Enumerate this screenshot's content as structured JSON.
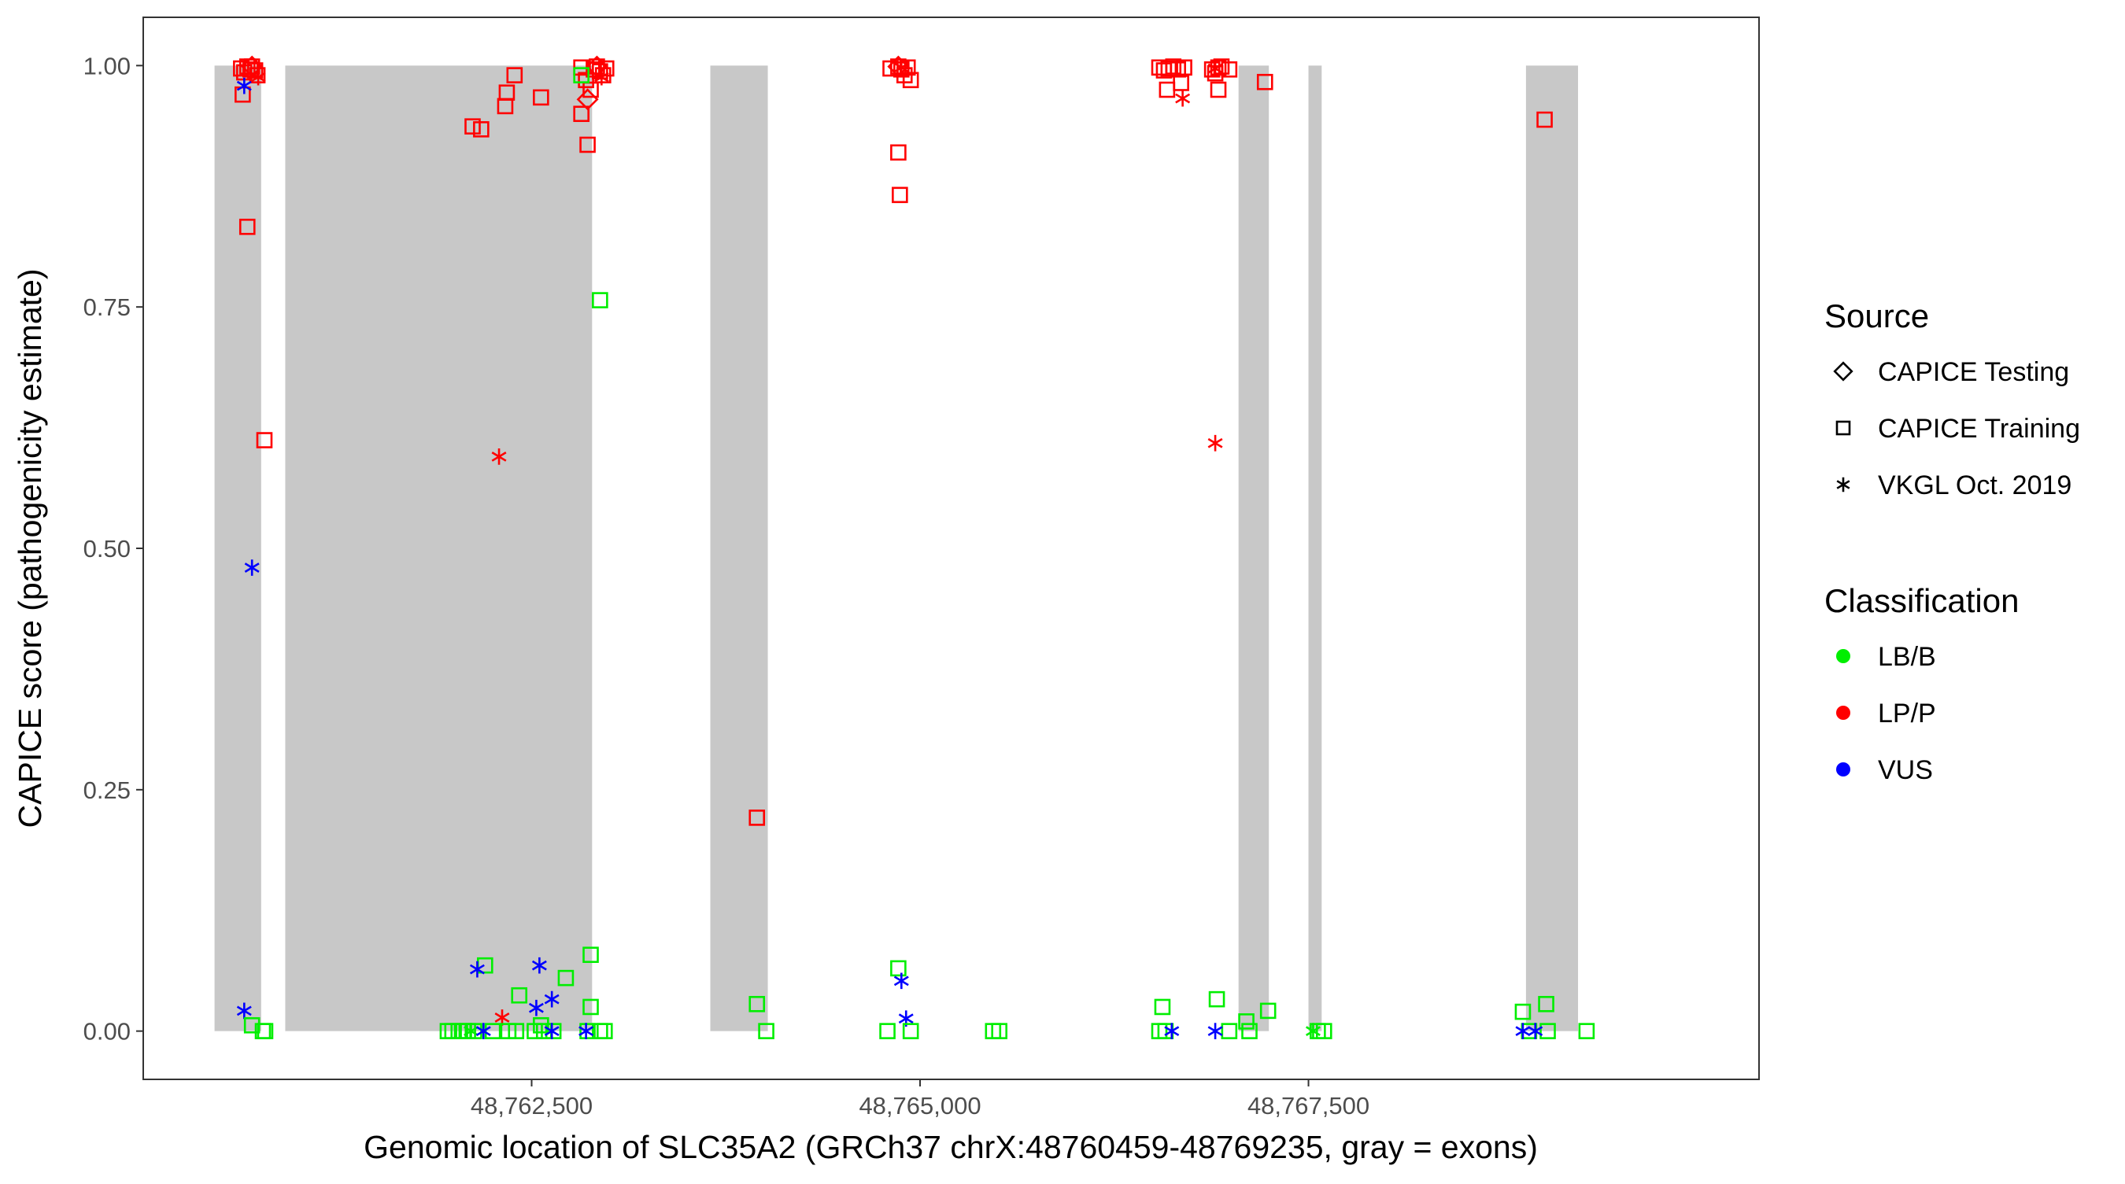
{
  "chart_data": {
    "type": "scatter",
    "title": "",
    "xlabel": "Genomic location of SLC35A2 (GRCh37 chrX:48760459-48769235, gray = exons)",
    "ylabel": "CAPICE score (pathogenicity estimate)",
    "xlim": [
      48760000,
      48770400
    ],
    "ylim": [
      -0.05,
      1.05
    ],
    "x_ticks": [
      48762500,
      48765000,
      48767500
    ],
    "x_tick_labels": [
      "48,762,500",
      "48,765,000",
      "48,767,500"
    ],
    "y_ticks": [
      0,
      0.25,
      0.5,
      0.75,
      1
    ],
    "y_tick_labels": [
      "0.00",
      "0.25",
      "0.50",
      "0.75",
      "1.00"
    ],
    "grid": false,
    "exons": [
      [
        48760459,
        48760759
      ],
      [
        48760914,
        48762889
      ],
      [
        48763650,
        48764020
      ],
      [
        48767050,
        48767245
      ],
      [
        48767500,
        48767585
      ],
      [
        48768900,
        48769235
      ]
    ],
    "exon_color": "#c8c8c8",
    "colors": {
      "LB/B": "#00ee00",
      "LP/P": "#ff0000",
      "VUS": "#0000ff"
    },
    "legend": {
      "placement": "right",
      "source_title": "Source",
      "source_items": [
        {
          "label": "CAPICE Testing",
          "shape": "diamond"
        },
        {
          "label": "CAPICE Training",
          "shape": "square"
        },
        {
          "label": "VKGL Oct. 2019",
          "shape": "asterisk"
        }
      ],
      "class_title": "Classification",
      "class_items": [
        {
          "label": "LB/B",
          "color": "#00ee00"
        },
        {
          "label": "LP/P",
          "color": "#ff0000"
        },
        {
          "label": "VUS",
          "color": "#0000ff"
        }
      ]
    },
    "points": [
      {
        "x": 48760630,
        "y": 0.997,
        "source": "CAPICE Training",
        "class": "LP/P"
      },
      {
        "x": 48760650,
        "y": 0.993,
        "source": "CAPICE Training",
        "class": "LP/P"
      },
      {
        "x": 48760670,
        "y": 0.999,
        "source": "CAPICE Training",
        "class": "LP/P"
      },
      {
        "x": 48760690,
        "y": 0.996,
        "source": "CAPICE Training",
        "class": "LP/P"
      },
      {
        "x": 48760700,
        "y": 0.999,
        "source": "CAPICE Training",
        "class": "LP/P"
      },
      {
        "x": 48760720,
        "y": 0.995,
        "source": "CAPICE Training",
        "class": "LP/P"
      },
      {
        "x": 48760735,
        "y": 0.99,
        "source": "CAPICE Training",
        "class": "LP/P"
      },
      {
        "x": 48760700,
        "y": 0.999,
        "source": "CAPICE Testing",
        "class": "LP/P"
      },
      {
        "x": 48760740,
        "y": 0.988,
        "source": "VKGL Oct. 2019",
        "class": "LP/P"
      },
      {
        "x": 48760640,
        "y": 0.97,
        "source": "CAPICE Training",
        "class": "LP/P"
      },
      {
        "x": 48760670,
        "y": 0.833,
        "source": "CAPICE Training",
        "class": "LP/P"
      },
      {
        "x": 48760780,
        "y": 0.612,
        "source": "CAPICE Training",
        "class": "LP/P"
      },
      {
        "x": 48760650,
        "y": 0.979,
        "source": "VKGL Oct. 2019",
        "class": "VUS"
      },
      {
        "x": 48760700,
        "y": 0.48,
        "source": "VKGL Oct. 2019",
        "class": "VUS"
      },
      {
        "x": 48760650,
        "y": 0.021,
        "source": "VKGL Oct. 2019",
        "class": "VUS"
      },
      {
        "x": 48760700,
        "y": 0.006,
        "source": "CAPICE Training",
        "class": "LB/B"
      },
      {
        "x": 48760770,
        "y": 0.0,
        "source": "CAPICE Training",
        "class": "LB/B"
      },
      {
        "x": 48760785,
        "y": 0.0,
        "source": "CAPICE Training",
        "class": "LB/B"
      },
      {
        "x": 48762120,
        "y": 0.937,
        "source": "CAPICE Training",
        "class": "LP/P"
      },
      {
        "x": 48762175,
        "y": 0.934,
        "source": "CAPICE Training",
        "class": "LP/P"
      },
      {
        "x": 48762330,
        "y": 0.958,
        "source": "CAPICE Training",
        "class": "LP/P"
      },
      {
        "x": 48762340,
        "y": 0.972,
        "source": "CAPICE Training",
        "class": "LP/P"
      },
      {
        "x": 48762390,
        "y": 0.99,
        "source": "CAPICE Training",
        "class": "LP/P"
      },
      {
        "x": 48762560,
        "y": 0.967,
        "source": "CAPICE Training",
        "class": "LP/P"
      },
      {
        "x": 48762290,
        "y": 0.595,
        "source": "VKGL Oct. 2019",
        "class": "LP/P"
      },
      {
        "x": 48762310,
        "y": 0.014,
        "source": "VKGL Oct. 2019",
        "class": "LP/P"
      },
      {
        "x": 48762820,
        "y": 0.95,
        "source": "CAPICE Training",
        "class": "LP/P"
      },
      {
        "x": 48762860,
        "y": 0.918,
        "source": "CAPICE Training",
        "class": "LP/P"
      },
      {
        "x": 48762850,
        "y": 0.985,
        "source": "CAPICE Training",
        "class": "LP/P"
      },
      {
        "x": 48762860,
        "y": 0.965,
        "source": "CAPICE Testing",
        "class": "LP/P"
      },
      {
        "x": 48762880,
        "y": 0.975,
        "source": "CAPICE Training",
        "class": "LP/P"
      },
      {
        "x": 48762820,
        "y": 0.998,
        "source": "CAPICE Training",
        "class": "LP/P"
      },
      {
        "x": 48762900,
        "y": 0.996,
        "source": "CAPICE Training",
        "class": "LP/P"
      },
      {
        "x": 48762920,
        "y": 0.999,
        "source": "CAPICE Training",
        "class": "LP/P"
      },
      {
        "x": 48762940,
        "y": 0.994,
        "source": "CAPICE Training",
        "class": "LP/P"
      },
      {
        "x": 48762960,
        "y": 0.99,
        "source": "CAPICE Training",
        "class": "LP/P"
      },
      {
        "x": 48762980,
        "y": 0.997,
        "source": "CAPICE Training",
        "class": "LP/P"
      },
      {
        "x": 48762920,
        "y": 0.999,
        "source": "CAPICE Testing",
        "class": "LP/P"
      },
      {
        "x": 48762950,
        "y": 0.988,
        "source": "VKGL Oct. 2019",
        "class": "LP/P"
      },
      {
        "x": 48762820,
        "y": 0.99,
        "source": "CAPICE Training",
        "class": "LB/B"
      },
      {
        "x": 48762940,
        "y": 0.757,
        "source": "CAPICE Training",
        "class": "LB/B"
      },
      {
        "x": 48762880,
        "y": 0.079,
        "source": "CAPICE Training",
        "class": "LB/B"
      },
      {
        "x": 48762720,
        "y": 0.055,
        "source": "CAPICE Training",
        "class": "LB/B"
      },
      {
        "x": 48762200,
        "y": 0.068,
        "source": "CAPICE Training",
        "class": "LB/B"
      },
      {
        "x": 48762420,
        "y": 0.037,
        "source": "CAPICE Training",
        "class": "LB/B"
      },
      {
        "x": 48762880,
        "y": 0.025,
        "source": "CAPICE Training",
        "class": "LB/B"
      },
      {
        "x": 48761960,
        "y": 0.0,
        "source": "CAPICE Training",
        "class": "LB/B"
      },
      {
        "x": 48761990,
        "y": 0.0,
        "source": "CAPICE Training",
        "class": "LB/B"
      },
      {
        "x": 48762030,
        "y": 0.0,
        "source": "CAPICE Training",
        "class": "LB/B"
      },
      {
        "x": 48762060,
        "y": 0.0,
        "source": "CAPICE Training",
        "class": "LB/B"
      },
      {
        "x": 48762090,
        "y": 0.0,
        "source": "CAPICE Training",
        "class": "LB/B"
      },
      {
        "x": 48762130,
        "y": 0.0,
        "source": "CAPICE Training",
        "class": "LB/B"
      },
      {
        "x": 48762250,
        "y": 0.0,
        "source": "CAPICE Training",
        "class": "LB/B"
      },
      {
        "x": 48762350,
        "y": 0.0,
        "source": "CAPICE Training",
        "class": "LB/B"
      },
      {
        "x": 48762400,
        "y": 0.0,
        "source": "CAPICE Training",
        "class": "LB/B"
      },
      {
        "x": 48762520,
        "y": 0.0,
        "source": "CAPICE Training",
        "class": "LB/B"
      },
      {
        "x": 48762560,
        "y": 0.006,
        "source": "CAPICE Training",
        "class": "LB/B"
      },
      {
        "x": 48762580,
        "y": 0.0,
        "source": "CAPICE Training",
        "class": "LB/B"
      },
      {
        "x": 48762640,
        "y": 0.0,
        "source": "CAPICE Training",
        "class": "LB/B"
      },
      {
        "x": 48762860,
        "y": 0.0,
        "source": "CAPICE Training",
        "class": "LB/B"
      },
      {
        "x": 48762940,
        "y": 0.0,
        "source": "CAPICE Training",
        "class": "LB/B"
      },
      {
        "x": 48762970,
        "y": 0.0,
        "source": "CAPICE Training",
        "class": "LB/B"
      },
      {
        "x": 48762110,
        "y": 0.0,
        "source": "VKGL Oct. 2019",
        "class": "LB/B"
      },
      {
        "x": 48762150,
        "y": 0.064,
        "source": "VKGL Oct. 2019",
        "class": "VUS"
      },
      {
        "x": 48762550,
        "y": 0.068,
        "source": "VKGL Oct. 2019",
        "class": "VUS"
      },
      {
        "x": 48762630,
        "y": 0.033,
        "source": "VKGL Oct. 2019",
        "class": "VUS"
      },
      {
        "x": 48762530,
        "y": 0.024,
        "source": "VKGL Oct. 2019",
        "class": "VUS"
      },
      {
        "x": 48762190,
        "y": 0.0,
        "source": "VKGL Oct. 2019",
        "class": "VUS"
      },
      {
        "x": 48762630,
        "y": 0.0,
        "source": "VKGL Oct. 2019",
        "class": "VUS"
      },
      {
        "x": 48762850,
        "y": 0.0,
        "source": "VKGL Oct. 2019",
        "class": "VUS"
      },
      {
        "x": 48763950,
        "y": 0.221,
        "source": "CAPICE Training",
        "class": "LP/P"
      },
      {
        "x": 48763950,
        "y": 0.028,
        "source": "CAPICE Training",
        "class": "LB/B"
      },
      {
        "x": 48764010,
        "y": 0.0,
        "source": "CAPICE Training",
        "class": "LB/B"
      },
      {
        "x": 48764810,
        "y": 0.997,
        "source": "CAPICE Training",
        "class": "LP/P"
      },
      {
        "x": 48764860,
        "y": 0.999,
        "source": "CAPICE Training",
        "class": "LP/P"
      },
      {
        "x": 48764880,
        "y": 0.996,
        "source": "CAPICE Training",
        "class": "LP/P"
      },
      {
        "x": 48764900,
        "y": 0.99,
        "source": "CAPICE Training",
        "class": "LP/P"
      },
      {
        "x": 48764920,
        "y": 0.998,
        "source": "CAPICE Training",
        "class": "LP/P"
      },
      {
        "x": 48764940,
        "y": 0.985,
        "source": "CAPICE Training",
        "class": "LP/P"
      },
      {
        "x": 48764860,
        "y": 0.999,
        "source": "CAPICE Testing",
        "class": "LP/P"
      },
      {
        "x": 48764880,
        "y": 0.998,
        "source": "VKGL Oct. 2019",
        "class": "LP/P"
      },
      {
        "x": 48764860,
        "y": 0.91,
        "source": "CAPICE Training",
        "class": "LP/P"
      },
      {
        "x": 48764870,
        "y": 0.866,
        "source": "CAPICE Training",
        "class": "LP/P"
      },
      {
        "x": 48764860,
        "y": 0.065,
        "source": "CAPICE Training",
        "class": "LB/B"
      },
      {
        "x": 48764880,
        "y": 0.052,
        "source": "VKGL Oct. 2019",
        "class": "VUS"
      },
      {
        "x": 48764910,
        "y": 0.013,
        "source": "VKGL Oct. 2019",
        "class": "VUS"
      },
      {
        "x": 48764790,
        "y": 0.0,
        "source": "CAPICE Training",
        "class": "LB/B"
      },
      {
        "x": 48764940,
        "y": 0.0,
        "source": "CAPICE Training",
        "class": "LB/B"
      },
      {
        "x": 48765470,
        "y": 0.0,
        "source": "CAPICE Training",
        "class": "LB/B"
      },
      {
        "x": 48765510,
        "y": 0.0,
        "source": "CAPICE Training",
        "class": "LB/B"
      },
      {
        "x": 48766540,
        "y": 0.998,
        "source": "CAPICE Training",
        "class": "LP/P"
      },
      {
        "x": 48766570,
        "y": 0.995,
        "source": "CAPICE Training",
        "class": "LP/P"
      },
      {
        "x": 48766600,
        "y": 0.997,
        "source": "CAPICE Training",
        "class": "LP/P"
      },
      {
        "x": 48766630,
        "y": 0.999,
        "source": "CAPICE Training",
        "class": "LP/P"
      },
      {
        "x": 48766660,
        "y": 0.996,
        "source": "CAPICE Training",
        "class": "LP/P"
      },
      {
        "x": 48766700,
        "y": 0.998,
        "source": "CAPICE Training",
        "class": "LP/P"
      },
      {
        "x": 48766590,
        "y": 0.975,
        "source": "CAPICE Training",
        "class": "LP/P"
      },
      {
        "x": 48766680,
        "y": 0.982,
        "source": "CAPICE Training",
        "class": "LP/P"
      },
      {
        "x": 48766690,
        "y": 0.966,
        "source": "VKGL Oct. 2019",
        "class": "LP/P"
      },
      {
        "x": 48766880,
        "y": 0.996,
        "source": "CAPICE Training",
        "class": "LP/P"
      },
      {
        "x": 48766900,
        "y": 0.992,
        "source": "CAPICE Training",
        "class": "LP/P"
      },
      {
        "x": 48766920,
        "y": 0.998,
        "source": "CAPICE Training",
        "class": "LP/P"
      },
      {
        "x": 48766940,
        "y": 0.999,
        "source": "CAPICE Training",
        "class": "LP/P"
      },
      {
        "x": 48766990,
        "y": 0.996,
        "source": "CAPICE Training",
        "class": "LP/P"
      },
      {
        "x": 48766920,
        "y": 0.975,
        "source": "CAPICE Training",
        "class": "LP/P"
      },
      {
        "x": 48766900,
        "y": 0.997,
        "source": "VKGL Oct. 2019",
        "class": "LP/P"
      },
      {
        "x": 48766900,
        "y": 0.609,
        "source": "VKGL Oct. 2019",
        "class": "LP/P"
      },
      {
        "x": 48767220,
        "y": 0.983,
        "source": "CAPICE Training",
        "class": "LP/P"
      },
      {
        "x": 48766560,
        "y": 0.025,
        "source": "CAPICE Training",
        "class": "LB/B"
      },
      {
        "x": 48766910,
        "y": 0.033,
        "source": "CAPICE Training",
        "class": "LB/B"
      },
      {
        "x": 48766540,
        "y": 0.0,
        "source": "CAPICE Training",
        "class": "LB/B"
      },
      {
        "x": 48766580,
        "y": 0.0,
        "source": "CAPICE Training",
        "class": "LB/B"
      },
      {
        "x": 48766990,
        "y": 0.0,
        "source": "CAPICE Training",
        "class": "LB/B"
      },
      {
        "x": 48766620,
        "y": 0.0,
        "source": "VKGL Oct. 2019",
        "class": "VUS"
      },
      {
        "x": 48766900,
        "y": 0.0,
        "source": "VKGL Oct. 2019",
        "class": "VUS"
      },
      {
        "x": 48767100,
        "y": 0.01,
        "source": "CAPICE Training",
        "class": "LB/B"
      },
      {
        "x": 48767120,
        "y": 0.0,
        "source": "CAPICE Training",
        "class": "LB/B"
      },
      {
        "x": 48767240,
        "y": 0.021,
        "source": "CAPICE Training",
        "class": "LB/B"
      },
      {
        "x": 48767530,
        "y": 0.0,
        "source": "VKGL Oct. 2019",
        "class": "LB/B"
      },
      {
        "x": 48767560,
        "y": 0.0,
        "source": "CAPICE Training",
        "class": "LB/B"
      },
      {
        "x": 48767600,
        "y": 0.0,
        "source": "CAPICE Training",
        "class": "LB/B"
      },
      {
        "x": 48769020,
        "y": 0.944,
        "source": "CAPICE Training",
        "class": "LP/P"
      },
      {
        "x": 48768880,
        "y": 0.02,
        "source": "CAPICE Training",
        "class": "LB/B"
      },
      {
        "x": 48769030,
        "y": 0.028,
        "source": "CAPICE Training",
        "class": "LB/B"
      },
      {
        "x": 48768920,
        "y": 0.0,
        "source": "CAPICE Training",
        "class": "LB/B"
      },
      {
        "x": 48769040,
        "y": 0.0,
        "source": "CAPICE Training",
        "class": "LB/B"
      },
      {
        "x": 48769290,
        "y": 0.0,
        "source": "CAPICE Training",
        "class": "LB/B"
      },
      {
        "x": 48768880,
        "y": 0.0,
        "source": "VKGL Oct. 2019",
        "class": "VUS"
      },
      {
        "x": 48768960,
        "y": 0.0,
        "source": "VKGL Oct. 2019",
        "class": "VUS"
      }
    ]
  }
}
